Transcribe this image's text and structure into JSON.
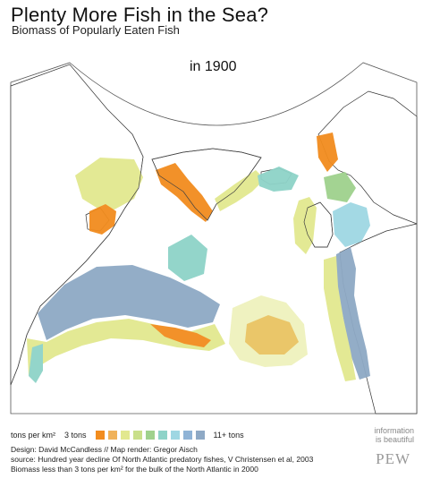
{
  "header": {
    "title": "Plenty More Fish in the Sea?",
    "subtitle": "Biomass of Popularly Eaten Fish"
  },
  "map": {
    "year_label": "in 1900",
    "colors": {
      "land": "#ffffff",
      "coast": "#333333",
      "orange_dark": "#f28c1e",
      "orange_light": "#f0b25a",
      "yellow": "#e2e88f",
      "lime": "#c9df8a",
      "green": "#9fd18d",
      "teal": "#8ed3c8",
      "cyan": "#9fd7e3",
      "blue": "#8fb3d6",
      "slate": "#8ea9c5"
    }
  },
  "legend": {
    "unit": "tons per km²",
    "low_label": "3 tons",
    "high_label": "11+ tons",
    "swatches": [
      "#f28c1e",
      "#f0b25a",
      "#e2e88f",
      "#c9df8a",
      "#9fd18d",
      "#8ed3c8",
      "#9fd7e3",
      "#8fb3d6",
      "#8ea9c5"
    ]
  },
  "credits": {
    "line1": "Design: David McCandless // Map render: Gregor Aisch",
    "line2": "source: Hundred year decline Of North Atlantic predatory fishes, V Christensen et al, 2003",
    "line3": "Biomass less than 3 tons per km² for the bulk of the North Atlantic in 2000"
  },
  "brand": {
    "line1": "information",
    "line2": "is beautiful",
    "pew": "PEW"
  }
}
